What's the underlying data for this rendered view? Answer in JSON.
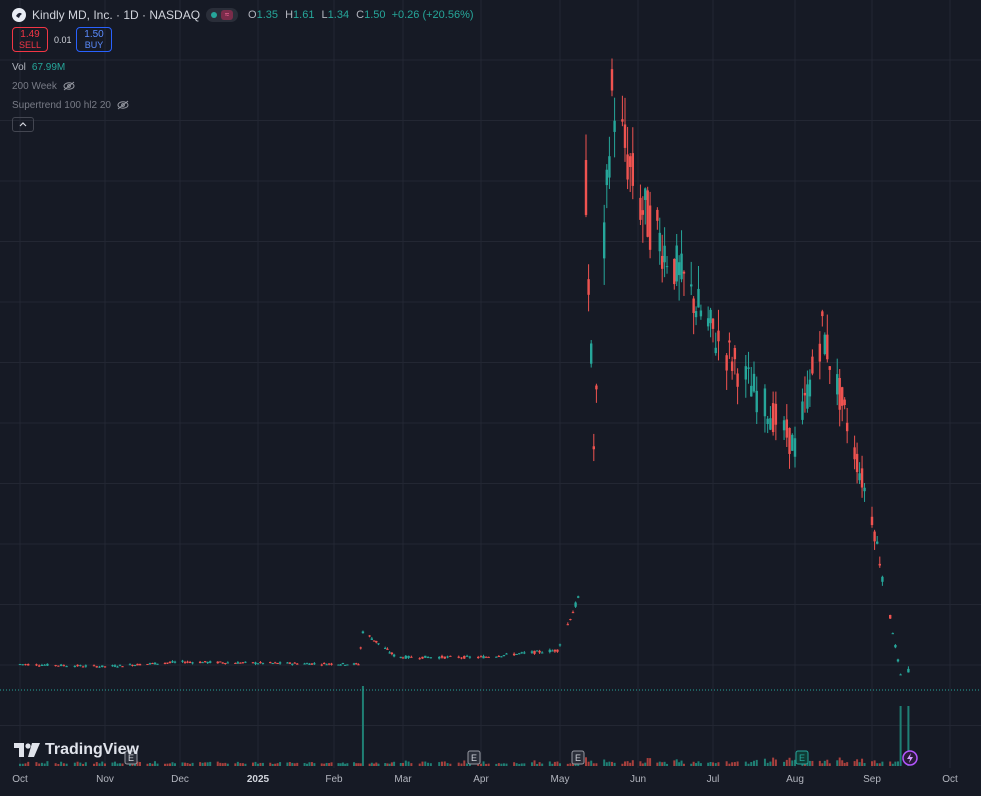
{
  "header": {
    "symbol_title": "Kindly MD, Inc. · 1D · NASDAQ",
    "ohlc": {
      "open_label": "O",
      "open": "1.35",
      "high_label": "H",
      "high": "1.61",
      "low_label": "L",
      "low": "1.34",
      "close_label": "C",
      "close": "1.50",
      "change": "+0.26 (+20.56%)"
    },
    "sell": {
      "price": "1.49",
      "label": "SELL"
    },
    "spread": "0.01",
    "buy": {
      "price": "1.50",
      "label": "BUY"
    }
  },
  "indicators": {
    "vol_label": "Vol",
    "vol_value": "67.99M",
    "ma_label": "200 Week",
    "supertrend_label": "Supertrend 100 hl2 20"
  },
  "watermark": "TradingView",
  "colors": {
    "up": "#26a69a",
    "down": "#ef5350",
    "background": "#161a25",
    "grid": "#232733",
    "vol_up": "#1f7f74",
    "vol_down": "#a8403d"
  },
  "chart_data": {
    "type": "candlestick",
    "symbol": "Kindly MD, Inc.",
    "interval": "1D",
    "exchange": "NASDAQ",
    "x_tick_labels": [
      "Oct",
      "Nov",
      "Dec",
      "2025",
      "Feb",
      "Mar",
      "Apr",
      "May",
      "Jun",
      "Jul",
      "Aug",
      "Sep",
      "Oct"
    ],
    "earnings_markers": [
      "Nov",
      "Mar",
      "May",
      "Aug"
    ],
    "last_close": 1.5,
    "price_series_approx": [
      {
        "date": "2024-10-01",
        "close": 1.7
      },
      {
        "date": "2024-11-01",
        "close": 1.6
      },
      {
        "date": "2024-12-01",
        "close": 1.8
      },
      {
        "date": "2025-01-01",
        "close": 1.75
      },
      {
        "date": "2025-02-12",
        "close": 1.7
      },
      {
        "date": "2025-02-14",
        "close": 3.1
      },
      {
        "date": "2025-03-01",
        "close": 2.0
      },
      {
        "date": "2025-04-01",
        "close": 2.0
      },
      {
        "date": "2025-05-01",
        "close": 2.3
      },
      {
        "date": "2025-05-09",
        "close": 4.5
      },
      {
        "date": "2025-05-12",
        "close": 22.0
      },
      {
        "date": "2025-05-15",
        "close": 11.0
      },
      {
        "date": "2025-05-22",
        "close": 26.0
      },
      {
        "date": "2025-06-01",
        "close": 21.5
      },
      {
        "date": "2025-07-01",
        "close": 16.0
      },
      {
        "date": "2025-08-01",
        "close": 11.0
      },
      {
        "date": "2025-08-12",
        "close": 16.0
      },
      {
        "date": "2025-09-01",
        "close": 8.0
      },
      {
        "date": "2025-09-12",
        "close": 1.24
      },
      {
        "date": "2025-09-15",
        "close": 1.5
      }
    ]
  }
}
